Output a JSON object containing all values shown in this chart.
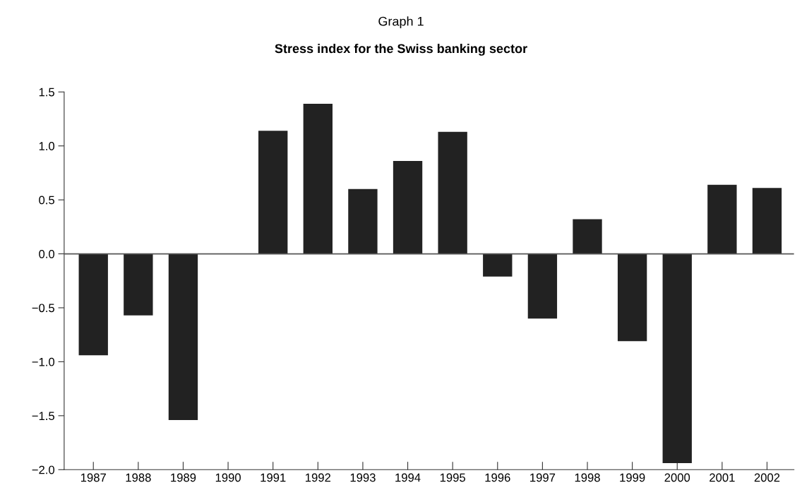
{
  "chart_data": {
    "type": "bar",
    "title": "Stress index for the Swiss banking sector",
    "subtitle": "Graph 1",
    "categories": [
      "1987",
      "1988",
      "1989",
      "1990",
      "1991",
      "1992",
      "1993",
      "1994",
      "1995",
      "1996",
      "1997",
      "1998",
      "1999",
      "2000",
      "2001",
      "2002"
    ],
    "values": [
      -0.94,
      -0.57,
      -1.54,
      null,
      1.14,
      1.39,
      0.6,
      0.86,
      1.13,
      -0.21,
      -0.6,
      0.32,
      -0.81,
      -1.94,
      0.64,
      0.61
    ],
    "color": "#222222",
    "ylim": [
      -2.0,
      1.5
    ],
    "yticks": [
      {
        "value": -2.0,
        "label": "−2.0"
      },
      {
        "value": -1.5,
        "label": "−1.5"
      },
      {
        "value": -1.0,
        "label": "−1.0"
      },
      {
        "value": -0.5,
        "label": "−0.5"
      },
      {
        "value": 0,
        "label": "0.0"
      },
      {
        "value": 0.5,
        "label": "0.5"
      },
      {
        "value": 1.0,
        "label": "1.0"
      },
      {
        "value": 1.5,
        "label": "1.5"
      }
    ],
    "ref_lines": [
      {
        "axis": "y",
        "value": 0,
        "label": null,
        "color": "#555555"
      }
    ],
    "grid": false
  }
}
